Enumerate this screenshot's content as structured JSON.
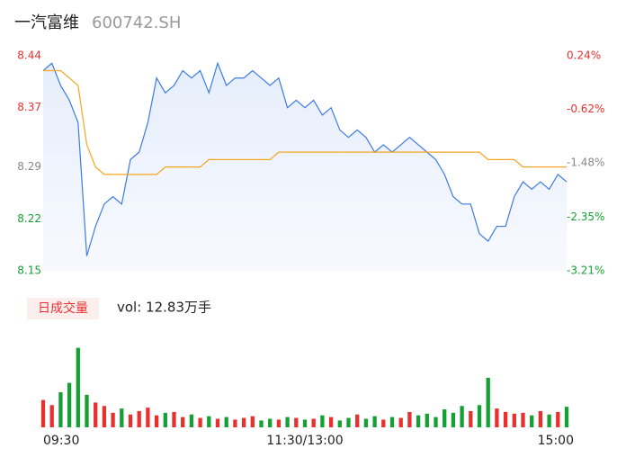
{
  "chart_data": {
    "type": "line",
    "title": "一汽富维",
    "code": "600742.SH",
    "x": [
      0,
      4,
      8,
      12,
      16,
      20,
      24,
      28,
      32,
      36,
      40,
      44,
      48,
      52,
      56,
      60,
      64,
      68,
      72,
      76,
      80,
      84,
      88,
      92,
      96,
      100,
      104,
      108,
      112,
      116,
      120,
      124,
      128,
      132,
      136,
      140,
      144,
      148,
      152,
      156,
      160,
      164,
      168,
      172,
      176,
      180,
      184,
      188,
      192,
      196,
      200,
      204,
      208,
      212,
      216,
      220,
      224,
      228,
      232,
      236,
      240
    ],
    "xlim": [
      0,
      240
    ],
    "xticks": [
      {
        "value": 0,
        "label": "09:30"
      },
      {
        "value": 120,
        "label": "11:30/13:00"
      },
      {
        "value": 240,
        "label": "15:00"
      }
    ],
    "ylim": [
      8.15,
      8.44
    ],
    "yticks": [
      8.44,
      8.37,
      8.29,
      8.22,
      8.15
    ],
    "ytick_colors": [
      "#e8312f",
      "#e8312f",
      "#888888",
      "#15a035",
      "#15a035"
    ],
    "y2lim": [
      -3.21,
      0.24
    ],
    "y2ticks": [
      {
        "value": 0.24,
        "label": "0.24%"
      },
      {
        "value": -0.62,
        "label": "-0.62%"
      },
      {
        "value": -1.48,
        "label": "-1.48%"
      },
      {
        "value": -2.35,
        "label": "-2.35%"
      },
      {
        "value": -3.21,
        "label": "-3.21%"
      }
    ],
    "series": [
      {
        "color": "#3d7be3",
        "values": [
          8.42,
          8.43,
          8.4,
          8.38,
          8.35,
          8.17,
          8.21,
          8.24,
          8.25,
          8.24,
          8.3,
          8.31,
          8.35,
          8.41,
          8.39,
          8.4,
          8.42,
          8.41,
          8.42,
          8.39,
          8.43,
          8.4,
          8.41,
          8.41,
          8.42,
          8.41,
          8.4,
          8.41,
          8.37,
          8.38,
          8.37,
          8.38,
          8.36,
          8.37,
          8.34,
          8.33,
          8.34,
          8.33,
          8.31,
          8.32,
          8.31,
          8.32,
          8.33,
          8.32,
          8.31,
          8.3,
          8.28,
          8.25,
          8.24,
          8.24,
          8.2,
          8.19,
          8.21,
          8.21,
          8.25,
          8.27,
          8.26,
          8.27,
          8.26,
          8.28,
          8.27
        ]
      },
      {
        "color": "#f5a623",
        "values": [
          8.42,
          8.42,
          8.42,
          8.41,
          8.4,
          8.32,
          8.29,
          8.28,
          8.28,
          8.28,
          8.28,
          8.28,
          8.28,
          8.28,
          8.29,
          8.29,
          8.29,
          8.29,
          8.29,
          8.3,
          8.3,
          8.3,
          8.3,
          8.3,
          8.3,
          8.3,
          8.3,
          8.31,
          8.31,
          8.31,
          8.31,
          8.31,
          8.31,
          8.31,
          8.31,
          8.31,
          8.31,
          8.31,
          8.31,
          8.31,
          8.31,
          8.31,
          8.31,
          8.31,
          8.31,
          8.31,
          8.31,
          8.31,
          8.31,
          8.31,
          8.31,
          8.3,
          8.3,
          8.3,
          8.3,
          8.29,
          8.29,
          8.29,
          8.29,
          8.29,
          8.29
        ]
      }
    ],
    "volume": {
      "label": "日成交量",
      "summary": "vol: 12.83万手",
      "ylim": [
        0,
        10000
      ],
      "up_color": "#e8312f",
      "down_color": "#15a035",
      "values": [
        3200,
        2600,
        4100,
        5200,
        9300,
        3800,
        2900,
        2500,
        1700,
        2200,
        1500,
        1900,
        2300,
        1400,
        1700,
        1800,
        1200,
        1500,
        1100,
        1300,
        1000,
        1200,
        900,
        1100,
        1300,
        800,
        1000,
        900,
        1200,
        1100,
        900,
        1000,
        1400,
        1200,
        800,
        1100,
        1500,
        1000,
        1300,
        900,
        1200,
        1100,
        1800,
        1400,
        1600,
        1200,
        2100,
        1700,
        2500,
        1900,
        2600,
        5800,
        2200,
        1800,
        1600,
        1700,
        1400,
        1900,
        1500,
        1800,
        2400
      ]
    }
  }
}
